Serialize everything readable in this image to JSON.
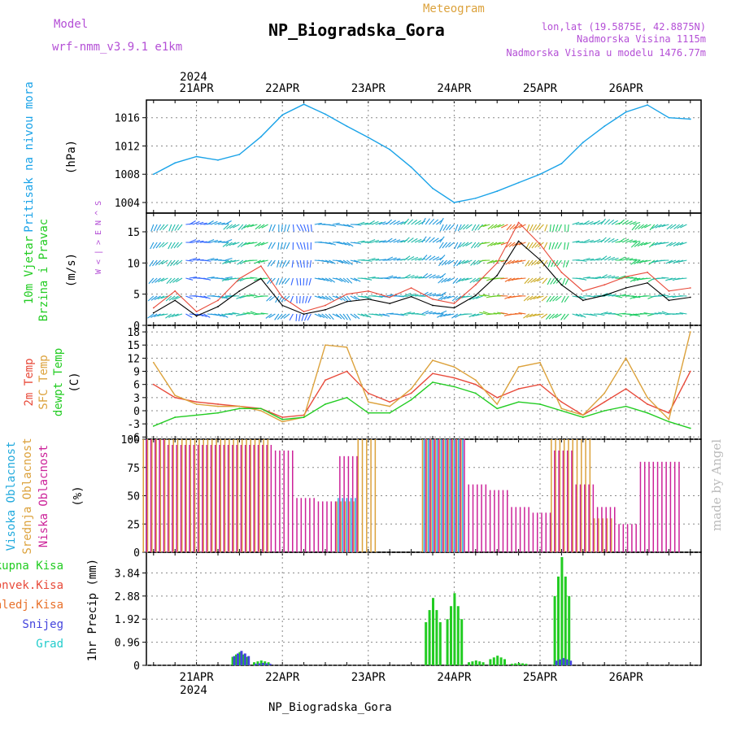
{
  "header": {
    "model_label": "Model",
    "model_value": "wrf-nmm_v3.9.1 e1km",
    "title": "NP_Biogradska_Gora",
    "product": "Meteogram",
    "coords": "lon,lat (19.5875E, 42.8875N)",
    "elevation": "Nadmorska Visina 1115m",
    "model_elevation": "Nadmorska Visina u modelu 1476.77m",
    "footer_station": "NP_Biogradska_Gora",
    "watermark": "made by Angel",
    "year": "2024"
  },
  "colors": {
    "pressure": "#1aa3e8",
    "temp2m": "#e84a3a",
    "sfc_temp": "#dca23c",
    "dewpt": "#22cc22",
    "high_cloud": "#22aadd",
    "mid_cloud": "#dca23c",
    "low_cloud": "#cc2299",
    "total_precip": "#22cc22",
    "conv_precip": "#e84a3a",
    "frz_precip": "#e8702a",
    "snow": "#4444dd",
    "graupel": "#22cccc",
    "model_title": "#b44fd6"
  },
  "chart_data": [
    {
      "type": "line",
      "panel": "pressure",
      "ylabel_left": "Pritisak na nivou mora",
      "ylabel_unit": "(hPa)",
      "yticks": [
        1004,
        1008,
        1012,
        1016
      ],
      "ylim": [
        1002.5,
        1018.5
      ],
      "x_days": [
        "21APR",
        "22APR",
        "23APR",
        "24APR",
        "25APR",
        "26APR"
      ],
      "x_hours": [
        0,
        6,
        12,
        18,
        24,
        30,
        36,
        42,
        48,
        54,
        60,
        66,
        72,
        78,
        84,
        90,
        96,
        102,
        108,
        114,
        120,
        126,
        132,
        138
      ],
      "series": [
        {
          "values": [
            1008.0,
            1009.6,
            1010.5,
            1010.0,
            1010.8,
            1013.3,
            1016.4,
            1017.9,
            1016.5,
            1014.8,
            1013.2,
            1011.5,
            1009.0,
            1006.0,
            1004.0,
            1004.6,
            1005.6,
            1006.8,
            1008.0,
            1009.5,
            1012.5,
            1014.8,
            1016.8,
            1017.8,
            1016.0,
            1015.8
          ]
        }
      ],
      "x": [
        -12,
        -6,
        0,
        6,
        12,
        18,
        24,
        30,
        36,
        42,
        48,
        54,
        60,
        66,
        72,
        78,
        84,
        90,
        96,
        102,
        108,
        114,
        120,
        126,
        132,
        138
      ]
    },
    {
      "type": "line",
      "panel": "wind",
      "ylabel_left": "10m Vjetar Brzina i Pravac",
      "ylabel_unit": "(m/s)",
      "compass": "W < | > E  N ^ S",
      "yticks": [
        0,
        5,
        10,
        15
      ],
      "ylim": [
        0,
        18
      ],
      "x": [
        -12,
        -6,
        0,
        6,
        12,
        18,
        24,
        30,
        36,
        42,
        48,
        54,
        60,
        66,
        72,
        78,
        84,
        90,
        96,
        102,
        108,
        114,
        120,
        126,
        132,
        138
      ],
      "series": [
        {
          "name": "wind speed",
          "values": [
            2.0,
            4.0,
            1.5,
            3.0,
            5.5,
            7.5,
            3.2,
            1.8,
            2.5,
            3.8,
            4.2,
            3.5,
            4.6,
            3.2,
            2.8,
            4.8,
            8.0,
            13.5,
            10.5,
            6.5,
            4.0,
            4.8,
            6.0,
            6.8,
            4.0,
            4.5
          ]
        },
        {
          "name": "wind gust",
          "values": [
            2.8,
            5.5,
            2.2,
            4.0,
            7.5,
            9.5,
            4.5,
            2.2,
            3.2,
            5.0,
            5.5,
            4.5,
            6.0,
            4.2,
            3.5,
            6.5,
            10.0,
            16.5,
            13.0,
            8.5,
            5.5,
            6.5,
            7.8,
            8.5,
            5.5,
            6.0
          ]
        }
      ]
    },
    {
      "type": "line",
      "panel": "temperature",
      "ylabel_left": [
        "2m Temp",
        "SFC Temp",
        "dewpt Temp"
      ],
      "ylabel_unit": "(C)",
      "yticks": [
        -6,
        -3,
        0,
        3,
        6,
        9,
        12,
        15,
        18
      ],
      "ylim": [
        -6.5,
        19.5
      ],
      "x": [
        -12,
        -6,
        0,
        6,
        12,
        18,
        24,
        30,
        36,
        42,
        48,
        54,
        60,
        66,
        72,
        78,
        84,
        90,
        96,
        102,
        108,
        114,
        120,
        126,
        132,
        138
      ],
      "series": [
        {
          "name": "2m Temp",
          "values": [
            6.0,
            3.0,
            2.0,
            1.5,
            1.0,
            0.5,
            -1.5,
            -1.0,
            7.0,
            9.0,
            4.0,
            2.0,
            4.0,
            8.5,
            7.5,
            6.0,
            3.0,
            5.0,
            6.0,
            2.0,
            -1.0,
            2.0,
            5.0,
            1.5,
            -0.5,
            9.0
          ]
        },
        {
          "name": "SFC Temp",
          "values": [
            11.0,
            3.5,
            1.5,
            1.0,
            1.0,
            0.0,
            -2.5,
            -1.5,
            15.0,
            14.5,
            2.0,
            1.0,
            5.0,
            11.5,
            10.0,
            7.0,
            1.5,
            10.0,
            11.0,
            0.5,
            -1.0,
            4.0,
            12.0,
            3.0,
            -2.0,
            18.0
          ]
        },
        {
          "name": "dewpt Temp",
          "values": [
            -3.5,
            -1.5,
            -1.0,
            -0.5,
            0.5,
            0.5,
            -2.0,
            -1.5,
            1.5,
            3.0,
            -0.5,
            -0.5,
            2.5,
            6.5,
            5.5,
            4.0,
            0.5,
            2.0,
            1.5,
            0.0,
            -1.5,
            0.0,
            1.0,
            -0.5,
            -2.5,
            -4.0
          ]
        }
      ]
    },
    {
      "type": "bar",
      "panel": "cloud",
      "ylabel_left": [
        "Visoka Oblacnost",
        "Srednja Oblacnost",
        "Niska Oblacnost"
      ],
      "ylabel_unit": "(%)",
      "yticks": [
        0,
        25,
        50,
        75,
        100
      ],
      "ylim": [
        0,
        100
      ],
      "x": [
        -12,
        -6,
        0,
        6,
        12,
        18,
        24,
        30,
        36,
        42,
        48,
        54,
        60,
        66,
        72,
        78,
        84,
        90,
        96,
        102,
        108,
        114,
        120,
        126,
        132,
        138
      ],
      "series": [
        {
          "name": "Srednja Oblacnost",
          "values": [
            100,
            100,
            100,
            100,
            100,
            100,
            0,
            0,
            0,
            45,
            100,
            0,
            0,
            100,
            100,
            0,
            0,
            0,
            0,
            100,
            100,
            30,
            0,
            0,
            0,
            0
          ]
        },
        {
          "name": "Niska Oblacnost",
          "values": [
            100,
            95,
            95,
            95,
            95,
            95,
            90,
            48,
            45,
            85,
            0,
            0,
            0,
            100,
            100,
            60,
            55,
            40,
            35,
            90,
            60,
            40,
            25,
            80,
            80,
            0
          ]
        },
        {
          "name": "Visoka Oblacnost",
          "values": [
            0,
            0,
            0,
            0,
            0,
            0,
            0,
            0,
            0,
            48,
            0,
            0,
            0,
            100,
            100,
            0,
            0,
            0,
            0,
            0,
            0,
            0,
            0,
            0,
            0,
            0
          ]
        }
      ]
    },
    {
      "type": "bar",
      "panel": "precip",
      "ylabel_left": [
        "Ukupna Kisa",
        "Konvek.Kisa",
        "Zaledj.Kisa",
        "Snijeg",
        "Grad"
      ],
      "ylabel_unit": "1hr Precip (mm)",
      "yticks": [
        0,
        0.96,
        1.92,
        2.88,
        3.84
      ],
      "ylim": [
        0,
        4.7
      ],
      "x": [
        -12,
        -6,
        0,
        6,
        12,
        18,
        24,
        30,
        36,
        42,
        48,
        54,
        60,
        66,
        72,
        78,
        84,
        90,
        96,
        102,
        108,
        114,
        120,
        126,
        132,
        138
      ],
      "series": [
        {
          "name": "Ukupna Kisa",
          "values": [
            0,
            0,
            0,
            0,
            0.55,
            0.2,
            0,
            0,
            0,
            0,
            0,
            0,
            0,
            2.8,
            3.0,
            0.2,
            0.4,
            0.1,
            0,
            4.5,
            0,
            0,
            0,
            0,
            0,
            0
          ]
        },
        {
          "name": "Snijeg",
          "values": [
            0,
            0,
            0,
            0,
            0.6,
            0.1,
            0,
            0,
            0,
            0,
            0,
            0,
            0,
            0,
            0,
            0,
            0,
            0,
            0,
            0.3,
            0,
            0,
            0,
            0,
            0,
            0
          ]
        }
      ]
    }
  ]
}
